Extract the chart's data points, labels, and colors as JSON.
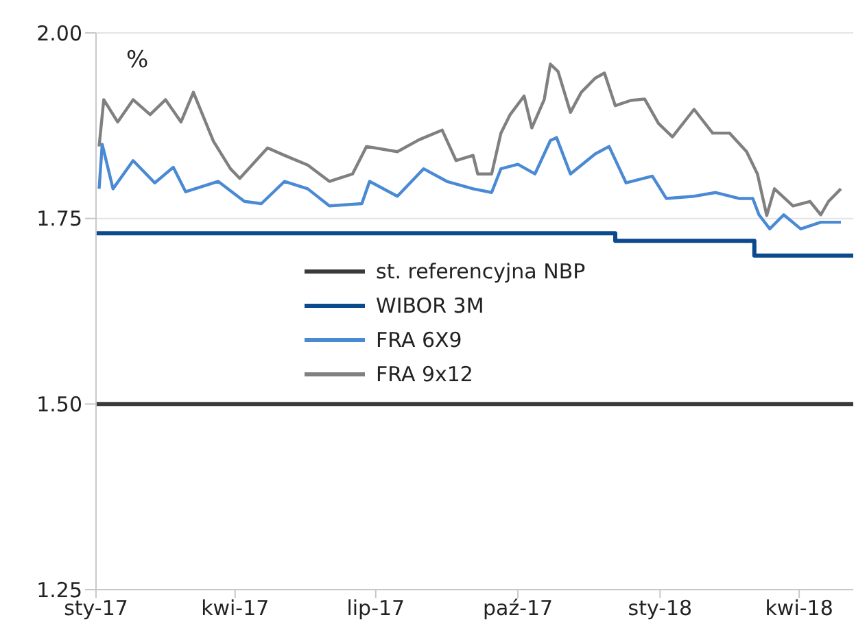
{
  "chart_data": {
    "type": "line",
    "annotations": [
      "%"
    ],
    "xlim": [
      "2017-01-01",
      "2018-05-06"
    ],
    "xticks": [
      {
        "value": "2017-01-01",
        "label": "sty-17"
      },
      {
        "value": "2017-04-01",
        "label": "kwi-17"
      },
      {
        "value": "2017-07-01",
        "label": "lip-17"
      },
      {
        "value": "2017-10-01",
        "label": "paź-17"
      },
      {
        "value": "2018-01-01",
        "label": "sty-18"
      },
      {
        "value": "2018-04-01",
        "label": "kwi-18"
      }
    ],
    "ylim": [
      1.25,
      2.0
    ],
    "yticks": [
      1.25,
      {
        "value": 1.5,
        "label": "1.50"
      },
      1.75,
      {
        "value": 2.0,
        "label": "2.00"
      }
    ],
    "grid": "y",
    "legend": "center",
    "marker": "none",
    "line_style": "solid",
    "series": [
      {
        "name": "st. referencyjna NBP",
        "color": "#3a3a3a",
        "x": [
          "2017-01-01",
          "2018-05-06"
        ],
        "values": [
          1.5,
          1.5
        ]
      },
      {
        "name": "WIBOR 3M",
        "color": "#0b4a8c",
        "type": "step",
        "x": [
          "2017-01-01",
          "2017-12-03",
          "2018-03-03",
          "2018-05-06"
        ],
        "values": [
          1.73,
          1.72,
          1.7,
          1.7
        ]
      },
      {
        "name": "FRA 6X9",
        "color": "#4a8ad4",
        "x": [
          "2017-01-03",
          "2017-01-05",
          "2017-01-12",
          "2017-01-25",
          "2017-02-08",
          "2017-02-20",
          "2017-02-28",
          "2017-03-21",
          "2017-04-07",
          "2017-04-18",
          "2017-05-03",
          "2017-05-18",
          "2017-06-01",
          "2017-06-22",
          "2017-06-27",
          "2017-07-15",
          "2017-08-01",
          "2017-08-16",
          "2017-09-02",
          "2017-09-14",
          "2017-09-20",
          "2017-10-01",
          "2017-10-12",
          "2017-10-22",
          "2017-10-26",
          "2017-11-04",
          "2017-11-20",
          "2017-11-29",
          "2017-12-10",
          "2017-12-27",
          "2018-01-05",
          "2018-01-23",
          "2018-02-06",
          "2018-02-21",
          "2018-03-02",
          "2018-03-06",
          "2018-03-13",
          "2018-03-22",
          "2018-04-02",
          "2018-04-15",
          "2018-04-28"
        ],
        "values": [
          1.79,
          1.85,
          1.79,
          1.828,
          1.798,
          1.819,
          1.786,
          1.8,
          1.773,
          1.77,
          1.8,
          1.79,
          1.767,
          1.77,
          1.8,
          1.78,
          1.817,
          1.8,
          1.79,
          1.785,
          1.817,
          1.823,
          1.81,
          1.855,
          1.859,
          1.81,
          1.837,
          1.847,
          1.798,
          1.807,
          1.777,
          1.78,
          1.785,
          1.777,
          1.777,
          1.755,
          1.736,
          1.755,
          1.736,
          1.745,
          1.745
        ]
      },
      {
        "name": "FRA 9x12",
        "color": "#808080",
        "x": [
          "2017-01-03",
          "2017-01-06",
          "2017-01-15",
          "2017-01-25",
          "2017-02-05",
          "2017-02-15",
          "2017-02-25",
          "2017-03-05",
          "2017-03-18",
          "2017-03-29",
          "2017-04-04",
          "2017-04-22",
          "2017-05-03",
          "2017-05-18",
          "2017-06-01",
          "2017-06-16",
          "2017-06-25",
          "2017-07-15",
          "2017-07-29",
          "2017-08-13",
          "2017-08-22",
          "2017-09-02",
          "2017-09-05",
          "2017-09-14",
          "2017-09-20",
          "2017-09-26",
          "2017-10-05",
          "2017-10-10",
          "2017-10-18",
          "2017-10-22",
          "2017-10-27",
          "2017-11-04",
          "2017-11-11",
          "2017-11-20",
          "2017-11-26",
          "2017-12-03",
          "2017-12-13",
          "2017-12-22",
          "2017-12-31",
          "2018-01-09",
          "2018-01-23",
          "2018-02-04",
          "2018-02-15",
          "2018-02-26",
          "2018-03-05",
          "2018-03-11",
          "2018-03-16",
          "2018-03-28",
          "2018-04-08",
          "2018-04-15",
          "2018-04-20",
          "2018-04-28"
        ],
        "values": [
          1.847,
          1.91,
          1.88,
          1.91,
          1.89,
          1.91,
          1.88,
          1.92,
          1.854,
          1.817,
          1.804,
          1.845,
          1.835,
          1.822,
          1.8,
          1.81,
          1.847,
          1.84,
          1.856,
          1.869,
          1.828,
          1.835,
          1.81,
          1.81,
          1.865,
          1.89,
          1.915,
          1.872,
          1.91,
          1.958,
          1.948,
          1.893,
          1.92,
          1.939,
          1.946,
          1.902,
          1.909,
          1.911,
          1.878,
          1.86,
          1.897,
          1.865,
          1.865,
          1.84,
          1.81,
          1.754,
          1.79,
          1.767,
          1.773,
          1.755,
          1.773,
          1.79
        ]
      }
    ]
  }
}
